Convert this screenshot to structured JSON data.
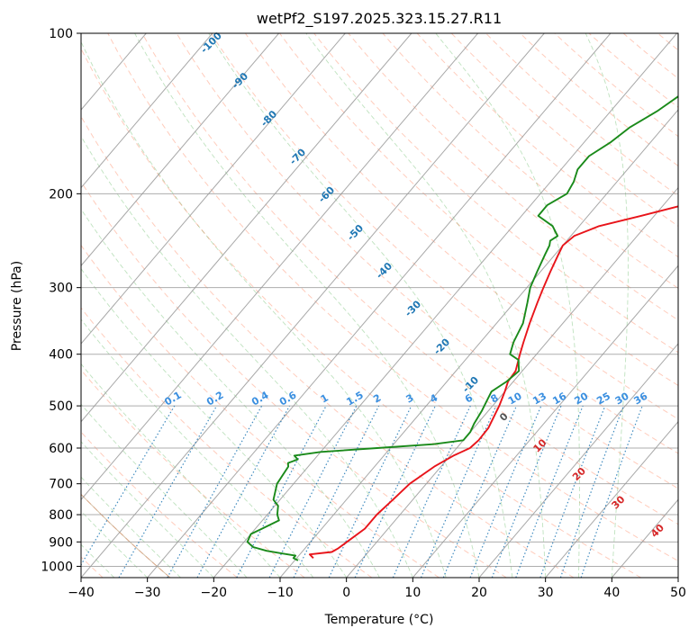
{
  "chart_data": {
    "type": "line",
    "title": "wetPf2_S197.2025.323.15.27.R11",
    "xlabel": "Temperature (°C)",
    "ylabel": "Pressure (hPa)",
    "xlim": [
      -40,
      50
    ],
    "ylim": [
      1050,
      100
    ],
    "y_scale": "log",
    "grid": true,
    "x_ticks": [
      "−40",
      "−30",
      "−20",
      "−10",
      "0",
      "10",
      "20",
      "30",
      "40",
      "50"
    ],
    "y_ticks": [
      "100",
      "200",
      "300",
      "400",
      "500",
      "600",
      "700",
      "800",
      "900",
      "1000"
    ],
    "series": [
      {
        "color": "#e8141a",
        "p": [
          965,
          950,
          940,
          925,
          900,
          850,
          800,
          750,
          700,
          650,
          620,
          600,
          580,
          550,
          500,
          470,
          450,
          430,
          400,
          380,
          350,
          320,
          300,
          280,
          260,
          250,
          240,
          230,
          220,
          210,
          200,
          190,
          180,
          170,
          160,
          150,
          140,
          130,
          120,
          110,
          100
        ],
        "t": [
          -7.5,
          -8.5,
          -5.5,
          -5.0,
          -4.5,
          -3.5,
          -3.5,
          -3.0,
          -2.5,
          -1.0,
          0.5,
          2.0,
          2.3,
          2.2,
          1.0,
          0.0,
          -0.8,
          -1.0,
          -2.5,
          -3.5,
          -5.0,
          -6.5,
          -7.5,
          -8.5,
          -9.5,
          -10.0,
          -9.5,
          -7.0,
          -2.0,
          3.0,
          8.0,
          12.5,
          16.5,
          20.5,
          24.0,
          26.5,
          28.5,
          30.0,
          31.5,
          33.5,
          35.5
        ]
      },
      {
        "color": "#1a8a1a",
        "p": [
          975,
          965,
          955,
          945,
          935,
          920,
          900,
          870,
          850,
          820,
          800,
          770,
          750,
          700,
          650,
          640,
          630,
          620,
          610,
          600,
          590,
          580,
          560,
          540,
          510,
          490,
          470,
          450,
          430,
          410,
          400,
          380,
          350,
          320,
          300,
          280,
          260,
          250,
          245,
          240,
          230,
          220,
          210,
          200,
          190,
          180,
          170,
          160,
          150,
          140,
          130,
          120,
          110,
          100
        ],
        "t": [
          -9.5,
          -10.5,
          -10.5,
          -13.0,
          -15.5,
          -18.0,
          -19.5,
          -20.0,
          -19.0,
          -17.5,
          -18.5,
          -19.5,
          -21.0,
          -22.5,
          -23.0,
          -23.5,
          -22.5,
          -23.5,
          -20.0,
          -12.0,
          -4.0,
          0.0,
          0.0,
          -0.5,
          -1.0,
          -1.5,
          -2.0,
          -1.0,
          -0.5,
          -2.0,
          -4.0,
          -5.0,
          -6.0,
          -8.0,
          -9.5,
          -10.5,
          -11.5,
          -12.0,
          -12.5,
          -12.0,
          -14.0,
          -17.5,
          -17.5,
          -16.0,
          -16.5,
          -17.5,
          -17.5,
          -16.0,
          -15.0,
          -13.0,
          -11.5,
          -10.5,
          -9.5,
          -9.5
        ]
      }
    ],
    "isotherm_labels": [],
    "dry_adiabat_labels": [
      "-100",
      "-90",
      "-80",
      "-70",
      "-60",
      "-50",
      "-40",
      "-30",
      "-20",
      "-10",
      "0",
      "10",
      "20",
      "30",
      "40"
    ],
    "mixing_ratio_labels": [
      "0.1",
      "0.2",
      "0.4",
      "0.6",
      "1",
      "1.5",
      "2",
      "3",
      "4",
      "6",
      "8",
      "10",
      "13",
      "16",
      "20",
      "25",
      "30",
      "36"
    ]
  }
}
